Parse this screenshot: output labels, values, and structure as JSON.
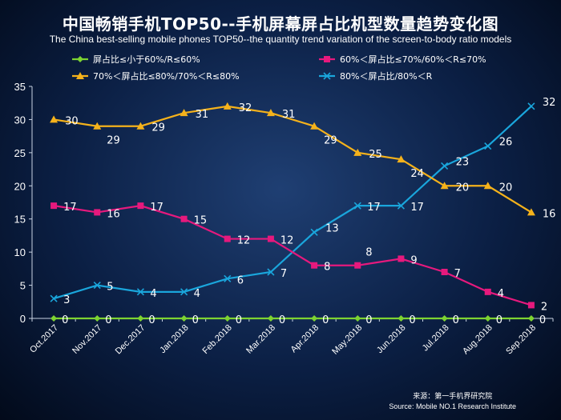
{
  "chart_data": {
    "type": "line",
    "title": "中国畅销手机TOP50--手机屏幕屏占比机型数量趋势变化图",
    "subtitle": "The China best-selling mobile phones TOP50--the quantity trend variation of the screen-to-body ratio models",
    "categories": [
      "Oct.2017",
      "Nov.2017",
      "Dec.2017",
      "Jan.2018",
      "Feb.2018",
      "Mar.2018",
      "Apr.2018",
      "May.2018",
      "Jun.2018",
      "Jul.2018",
      "Aug.2018",
      "Sep.2018"
    ],
    "ylim": [
      0,
      35
    ],
    "yticks": [
      "0",
      "5",
      "10",
      "15",
      "20",
      "25",
      "30",
      "35"
    ],
    "grid": false,
    "legend_position": "top",
    "series": [
      {
        "name": "屏占比≤小于60%/R≤60%",
        "color": "#7dd331",
        "marker": "diamond",
        "values": [
          0,
          0,
          0,
          0,
          0,
          0,
          0,
          0,
          0,
          0,
          0,
          0
        ],
        "labels": [
          "0",
          "0",
          "0",
          "0",
          "0",
          "0",
          "0",
          "0",
          "0",
          "0",
          "0",
          "0"
        ]
      },
      {
        "name": "60%＜屏占比≤70%/60%＜R≤70%",
        "color": "#e6197d",
        "marker": "square",
        "values": [
          17,
          16,
          17,
          15,
          12,
          12,
          8,
          8,
          9,
          7,
          4,
          2
        ],
        "labels": [
          "17",
          "16",
          "17",
          "15",
          "12",
          "12",
          "8",
          "8",
          "9",
          "7",
          "4",
          "2"
        ]
      },
      {
        "name": "70%＜屏占比≤80%/70%＜R≤80%",
        "color": "#f5b21b",
        "marker": "triangle",
        "values": [
          30,
          29,
          29,
          31,
          32,
          31,
          29,
          25,
          24,
          20,
          20,
          16
        ],
        "labels": [
          "30",
          "29",
          "29",
          "31",
          "32",
          "31",
          "29",
          "25",
          "24",
          "20",
          "20",
          "16"
        ]
      },
      {
        "name": "80%＜屏占比/80%＜R",
        "color": "#1aa6dc",
        "marker": "x",
        "values": [
          3,
          5,
          4,
          4,
          6,
          7,
          13,
          17,
          17,
          23,
          26,
          32
        ],
        "labels": [
          "3",
          "5",
          "4",
          "4",
          "6",
          "7",
          "13",
          "17",
          "17",
          "23",
          "26",
          "32"
        ]
      }
    ]
  },
  "source": {
    "cn": "来源：第一手机界研究院",
    "en": "Source: Mobile NO.1 Research Institute"
  }
}
